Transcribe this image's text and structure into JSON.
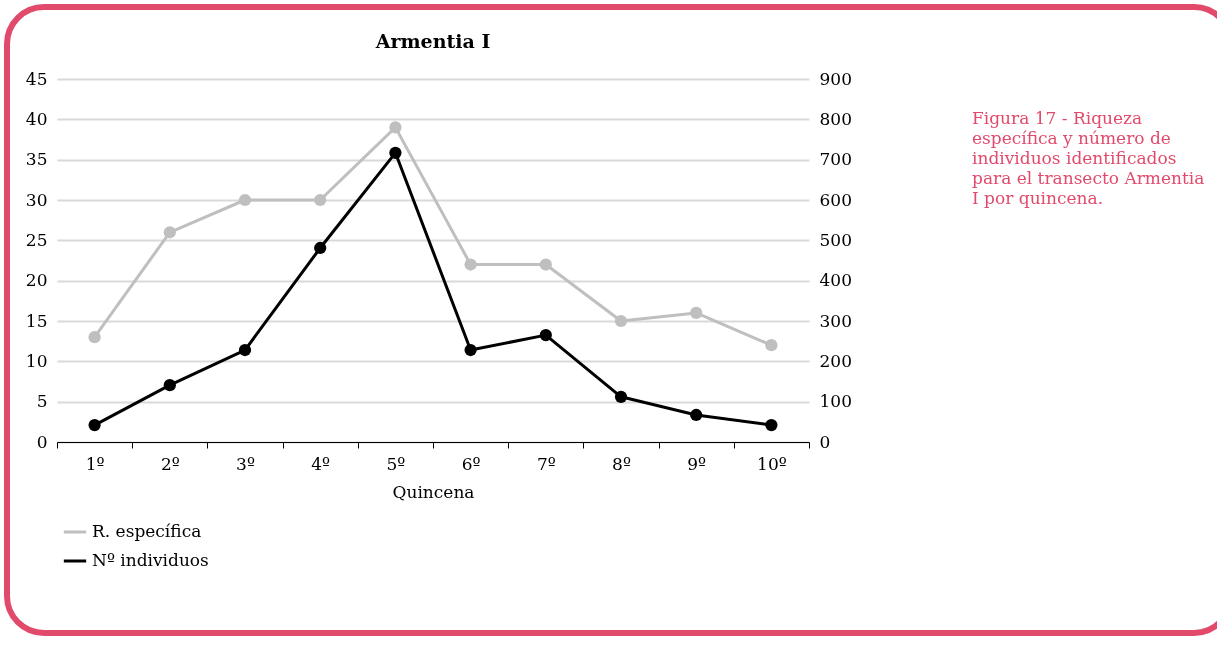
{
  "chart_data": {
    "type": "line",
    "title": "Armentia I",
    "xlabel": "Quincena",
    "categories": [
      "1º",
      "2º",
      "3º",
      "4º",
      "5º",
      "6º",
      "7º",
      "8º",
      "9º",
      "10º"
    ],
    "series": [
      {
        "name": "R. específica",
        "color": "#bfbfbf",
        "values": [
          13,
          26,
          30,
          30,
          39,
          22,
          22,
          15,
          16,
          12
        ]
      },
      {
        "name": "Nº individuos",
        "color": "#000000",
        "axis": "y2",
        "values": [
          42,
          141,
          228,
          481,
          717,
          228,
          265,
          112,
          67,
          42
        ]
      }
    ],
    "ylim": [
      0,
      45
    ],
    "yticks": [
      0,
      5,
      10,
      15,
      20,
      25,
      30,
      35,
      40,
      45
    ],
    "y2lim": [
      0,
      900
    ],
    "y2ticks": [
      0,
      100,
      200,
      300,
      400,
      500,
      600,
      700,
      800,
      900
    ],
    "grid": "y",
    "legend": "bottom left",
    "marker": "circle",
    "line_style": "solid",
    "annotations": [
      "Figura 17 - Riqueza específica y número de individuos identificados para el transecto Armentia I por quincena."
    ]
  }
}
